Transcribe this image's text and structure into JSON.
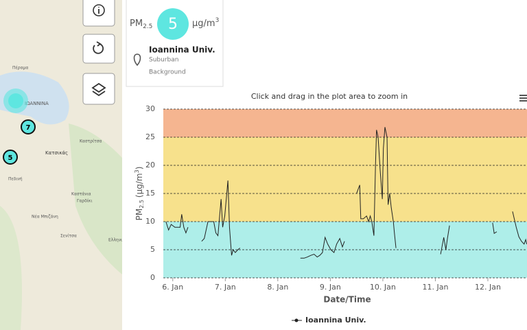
{
  "map": {
    "labels": [
      "Πέραμα",
      "ΙΩΑΝΝΙΝΑ",
      "Καστρίτσα",
      "Κατσικάς",
      "Πεδινή",
      "Καστάνια",
      "Γαρδίκι",
      "Νέα Μπιζάνη",
      "Σενίτσα",
      "Ελληνικό"
    ],
    "clusters": [
      "7",
      "5"
    ]
  },
  "popup": {
    "pm": "PM",
    "pm_sub": "2.5",
    "value": "5",
    "unit": "μg/m",
    "unit_sup": "3",
    "station": "Ioannina Univ.",
    "area": "Suburban",
    "kind": "Background"
  },
  "chart_data": {
    "type": "line",
    "title": "Click and drag in the plot area to zoom in",
    "xlabel": "Date/Time",
    "ylabel_parts": [
      "PM",
      "2.5",
      "(μg/m",
      "3",
      ")"
    ],
    "xlim": [
      5.82,
      12.745
    ],
    "ylim": [
      0,
      30
    ],
    "xticks": [
      {
        "value": 6,
        "label": "6. Jan"
      },
      {
        "value": 7,
        "label": "7. Jan"
      },
      {
        "value": 8,
        "label": "8. Jan"
      },
      {
        "value": 9,
        "label": "9. Jan"
      },
      {
        "value": 10,
        "label": "10. Jan"
      },
      {
        "value": 11,
        "label": "11. Jan"
      },
      {
        "value": 12,
        "label": "12. Jan"
      }
    ],
    "yticks": [
      0,
      5,
      10,
      15,
      20,
      25,
      30
    ],
    "grid": true,
    "bands": [
      {
        "from": 0,
        "to": 10,
        "color": "#aeeee9"
      },
      {
        "from": 10,
        "to": 25,
        "color": "#f7e18c"
      },
      {
        "from": 25,
        "to": 30,
        "color": "#f5b590"
      }
    ],
    "x": [
      5.87,
      5.92,
      5.97,
      6.04,
      6.1,
      6.14,
      6.17,
      6.21,
      6.25,
      6.29,
      6.4,
      6.55,
      6.6,
      6.67,
      6.73,
      6.78,
      6.82,
      6.86,
      6.92,
      6.95,
      6.99,
      7.05,
      7.08,
      7.12,
      7.15,
      7.19,
      7.24,
      7.28,
      7.8,
      8.43,
      8.5,
      8.56,
      8.63,
      8.69,
      8.75,
      8.8,
      8.85,
      8.9,
      8.95,
      9.01,
      9.07,
      9.12,
      9.18,
      9.23,
      9.27,
      9.4,
      9.5,
      9.56,
      9.58,
      9.63,
      9.69,
      9.73,
      9.76,
      9.79,
      9.83,
      9.86,
      9.88,
      9.91,
      9.95,
      9.99,
      10.01,
      10.04,
      10.08,
      10.1,
      10.13,
      10.16,
      10.2,
      10.22,
      10.25,
      10.6,
      11.1,
      11.16,
      11.2,
      11.23,
      11.27,
      11.7,
      12.09,
      12.12,
      12.17,
      12.3,
      12.47,
      12.54,
      12.59,
      12.64,
      12.69,
      12.72,
      12.74
    ],
    "series": [
      {
        "name": "Ioannina Univ.",
        "color": "#222222",
        "values": [
          10,
          8.5,
          9.5,
          9,
          9,
          9,
          11.3,
          9,
          8,
          9,
          null,
          6.5,
          7,
          10,
          10,
          10,
          8,
          7.5,
          14,
          9,
          11,
          17.3,
          9,
          4,
          5,
          4.5,
          5,
          5.3,
          null,
          3.5,
          3.5,
          3.7,
          4,
          4.2,
          3.7,
          4,
          4.5,
          7.2,
          6,
          5,
          4.5,
          6,
          7,
          5.5,
          6.5,
          null,
          15,
          16.5,
          10.5,
          10.5,
          11,
          10,
          11,
          10,
          7.5,
          20,
          26.3,
          25,
          19,
          14,
          23,
          26.8,
          25,
          13,
          15,
          12.5,
          10,
          8,
          5.3,
          null,
          4.2,
          7.2,
          5,
          7,
          9.3,
          null,
          9.8,
          7.9,
          8.2,
          null,
          11.8,
          9,
          7.3,
          6.5,
          6,
          6.8,
          6
        ]
      }
    ]
  }
}
